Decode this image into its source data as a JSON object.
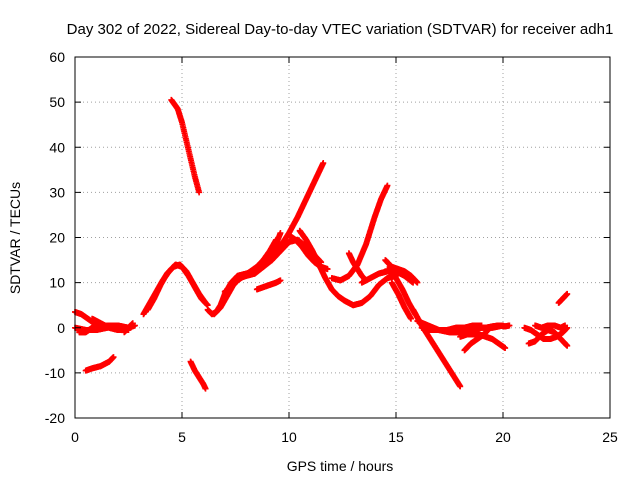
{
  "chart_data": {
    "type": "scatter",
    "title": "Day 302 of 2022, Sidereal Day-to-day VTEC variation (SDTVAR) for receiver adh1",
    "xlabel": "GPS time / hours",
    "ylabel": "SDTVAR / TECUs",
    "xlim": [
      0,
      25
    ],
    "ylim": [
      -20,
      60
    ],
    "xticks": [
      0,
      5,
      10,
      15,
      20,
      25
    ],
    "yticks": [
      -20,
      -10,
      0,
      10,
      20,
      30,
      40,
      50,
      60
    ],
    "grid": true,
    "marker": "+",
    "color": "#ff0000",
    "series": [
      {
        "x": [
          0.0,
          0.3,
          0.6,
          0.9,
          1.2,
          1.5,
          1.8,
          2.0
        ],
        "y": [
          3.5,
          3.0,
          2.0,
          1.0,
          0.5,
          0.3,
          0.2,
          0.0
        ]
      },
      {
        "x": [
          0.0,
          0.5,
          1.0,
          1.5,
          2.0,
          2.5,
          2.8
        ],
        "y": [
          0.0,
          -0.5,
          -0.5,
          0.0,
          0.5,
          0.0,
          0.5
        ]
      },
      {
        "x": [
          0.2,
          0.5,
          0.8,
          1.2,
          1.6,
          2.0
        ],
        "y": [
          -1.0,
          -1.0,
          0.0,
          0.3,
          0.5,
          0.5
        ]
      },
      {
        "x": [
          0.8,
          1.2,
          1.6,
          2.0,
          2.5
        ],
        "y": [
          2.0,
          1.0,
          0.0,
          -0.5,
          -0.5
        ]
      },
      {
        "x": [
          0.5,
          0.8,
          1.2,
          1.6,
          1.8
        ],
        "y": [
          -9.5,
          -9.0,
          -8.5,
          -7.5,
          -6.5
        ]
      },
      {
        "x": [
          2.3,
          2.5,
          2.7
        ],
        "y": [
          -1.0,
          0.0,
          1.0
        ]
      },
      {
        "x": [
          3.2,
          3.5,
          3.8,
          4.1,
          4.4,
          4.7,
          5.0,
          5.3,
          5.6,
          5.9,
          6.2
        ],
        "y": [
          3.0,
          5.5,
          8.0,
          10.5,
          12.5,
          14.0,
          13.5,
          11.5,
          9.0,
          6.5,
          5.0
        ]
      },
      {
        "x": [
          3.4,
          3.7,
          4.0,
          4.3,
          4.6,
          4.9,
          5.2,
          5.5,
          5.8,
          6.1
        ],
        "y": [
          4.0,
          6.5,
          9.5,
          12.0,
          13.5,
          14.0,
          12.5,
          10.0,
          7.5,
          5.5
        ]
      },
      {
        "x": [
          4.5,
          4.8,
          5.0,
          5.2,
          5.4,
          5.6,
          5.8
        ],
        "y": [
          50.5,
          48.5,
          45.5,
          41.5,
          37.5,
          33.5,
          30.0
        ]
      },
      {
        "x": [
          5.4,
          5.6,
          5.8,
          6.0,
          6.1
        ],
        "y": [
          -7.5,
          -9.5,
          -11.0,
          -12.5,
          -13.5
        ]
      },
      {
        "x": [
          6.2,
          6.4,
          6.6,
          6.8,
          7.0,
          7.3,
          7.6,
          8.0,
          8.4,
          8.8,
          9.2,
          9.6,
          10.0,
          10.4,
          10.8,
          11.2,
          11.5
        ],
        "y": [
          4.0,
          3.0,
          3.5,
          5.0,
          7.5,
          10.0,
          11.5,
          12.0,
          12.5,
          13.5,
          15.0,
          17.0,
          19.0,
          19.5,
          18.0,
          16.0,
          14.5
        ]
      },
      {
        "x": [
          6.5,
          6.8,
          7.1,
          7.4,
          7.7,
          8.0,
          8.4,
          8.8,
          9.2,
          9.6
        ],
        "y": [
          3.0,
          4.5,
          7.0,
          9.5,
          11.0,
          11.5,
          12.0,
          13.5,
          16.0,
          21.0
        ]
      },
      {
        "x": [
          7.0,
          7.3,
          7.6,
          7.9,
          8.2,
          8.5,
          8.8,
          9.1,
          9.4
        ],
        "y": [
          8.0,
          9.0,
          10.5,
          11.5,
          12.5,
          13.5,
          15.0,
          17.0,
          19.5
        ]
      },
      {
        "x": [
          8.5,
          8.8,
          9.1,
          9.4,
          9.6
        ],
        "y": [
          8.5,
          9.0,
          9.5,
          10.0,
          10.5
        ]
      },
      {
        "x": [
          9.2,
          9.6,
          10.0,
          10.4,
          10.8,
          11.2,
          11.6
        ],
        "y": [
          15.0,
          18.0,
          21.0,
          24.5,
          28.5,
          32.5,
          36.5
        ]
      },
      {
        "x": [
          10.0,
          10.3,
          10.6,
          10.9,
          11.2,
          11.5,
          11.8
        ],
        "y": [
          20.5,
          19.5,
          18.0,
          16.0,
          14.5,
          13.5,
          13.0
        ]
      },
      {
        "x": [
          10.5,
          10.8,
          11.1,
          11.4,
          11.7,
          12.0,
          12.3,
          12.6,
          13.0,
          13.4,
          13.8,
          14.2,
          14.6,
          15.0
        ],
        "y": [
          21.5,
          19.5,
          17.0,
          14.0,
          11.0,
          8.5,
          7.0,
          6.0,
          5.0,
          5.5,
          7.0,
          9.5,
          11.0,
          11.5
        ]
      },
      {
        "x": [
          12.0,
          12.4,
          12.8,
          13.2,
          13.6,
          14.0,
          14.3,
          14.6
        ],
        "y": [
          11.0,
          10.5,
          11.5,
          14.0,
          18.5,
          24.5,
          28.5,
          31.5
        ]
      },
      {
        "x": [
          12.8,
          13.0,
          13.2,
          13.4,
          13.6
        ],
        "y": [
          16.5,
          14.5,
          13.0,
          11.5,
          10.5
        ]
      },
      {
        "x": [
          13.4,
          13.8,
          14.2,
          14.6,
          15.0,
          15.4,
          15.8
        ],
        "y": [
          10.0,
          11.0,
          12.0,
          12.5,
          12.5,
          11.5,
          10.0
        ]
      },
      {
        "x": [
          14.5,
          14.8,
          15.1,
          15.4,
          15.7,
          16.0
        ],
        "y": [
          15.0,
          13.5,
          13.0,
          12.5,
          11.5,
          10.0
        ]
      },
      {
        "x": [
          14.6,
          15.0,
          15.3,
          15.6,
          15.9
        ],
        "y": [
          13.0,
          11.0,
          8.5,
          5.5,
          3.0
        ]
      },
      {
        "x": [
          14.8,
          15.1,
          15.4,
          15.7
        ],
        "y": [
          10.0,
          7.5,
          4.5,
          2.0
        ]
      },
      {
        "x": [
          15.8,
          16.2,
          16.6,
          17.0,
          17.4,
          17.8,
          18.0
        ],
        "y": [
          4.0,
          0.5,
          -2.5,
          -5.5,
          -8.5,
          -11.5,
          -13.0
        ]
      },
      {
        "x": [
          16.0,
          16.5,
          17.0,
          17.5,
          18.0,
          18.5,
          19.0,
          19.5,
          20.0
        ],
        "y": [
          1.5,
          0.5,
          -0.5,
          -1.0,
          -1.0,
          -0.5,
          0.0,
          0.0,
          0.5
        ]
      },
      {
        "x": [
          16.2,
          16.6,
          17.0,
          17.4,
          17.8,
          18.2,
          18.6,
          19.0
        ],
        "y": [
          0.0,
          -0.5,
          -0.5,
          -0.5,
          0.0,
          0.0,
          0.5,
          0.5
        ]
      },
      {
        "x": [
          18.0,
          18.3,
          18.6,
          18.9,
          19.2,
          19.5,
          19.8,
          20.1
        ],
        "y": [
          -2.0,
          -1.5,
          -1.5,
          -1.5,
          -2.0,
          -2.5,
          -3.5,
          -4.5
        ]
      },
      {
        "x": [
          18.2,
          18.5,
          18.8,
          19.1,
          19.3
        ],
        "y": [
          -5.0,
          -3.5,
          -2.5,
          -1.5,
          -0.5
        ]
      },
      {
        "x": [
          19.2,
          19.5,
          19.8,
          20.1,
          20.3
        ],
        "y": [
          0.0,
          0.3,
          0.5,
          0.3,
          0.5
        ]
      },
      {
        "x": [
          21.0,
          21.3,
          21.6,
          21.9,
          22.2,
          22.5,
          22.8,
          23.0
        ],
        "y": [
          0.0,
          -0.5,
          -1.5,
          -2.5,
          -2.5,
          -2.0,
          -1.0,
          0.0
        ]
      },
      {
        "x": [
          21.2,
          21.5,
          21.8,
          22.1,
          22.4,
          22.7,
          23.0
        ],
        "y": [
          -3.5,
          -3.0,
          -1.5,
          -0.5,
          -1.0,
          -2.5,
          -4.0
        ]
      },
      {
        "x": [
          21.5,
          21.8,
          22.1,
          22.4,
          22.7,
          22.9
        ],
        "y": [
          0.5,
          0.0,
          0.5,
          0.5,
          0.0,
          0.5
        ]
      },
      {
        "x": [
          22.6,
          22.8,
          23.0
        ],
        "y": [
          5.5,
          6.5,
          7.5
        ]
      }
    ]
  }
}
